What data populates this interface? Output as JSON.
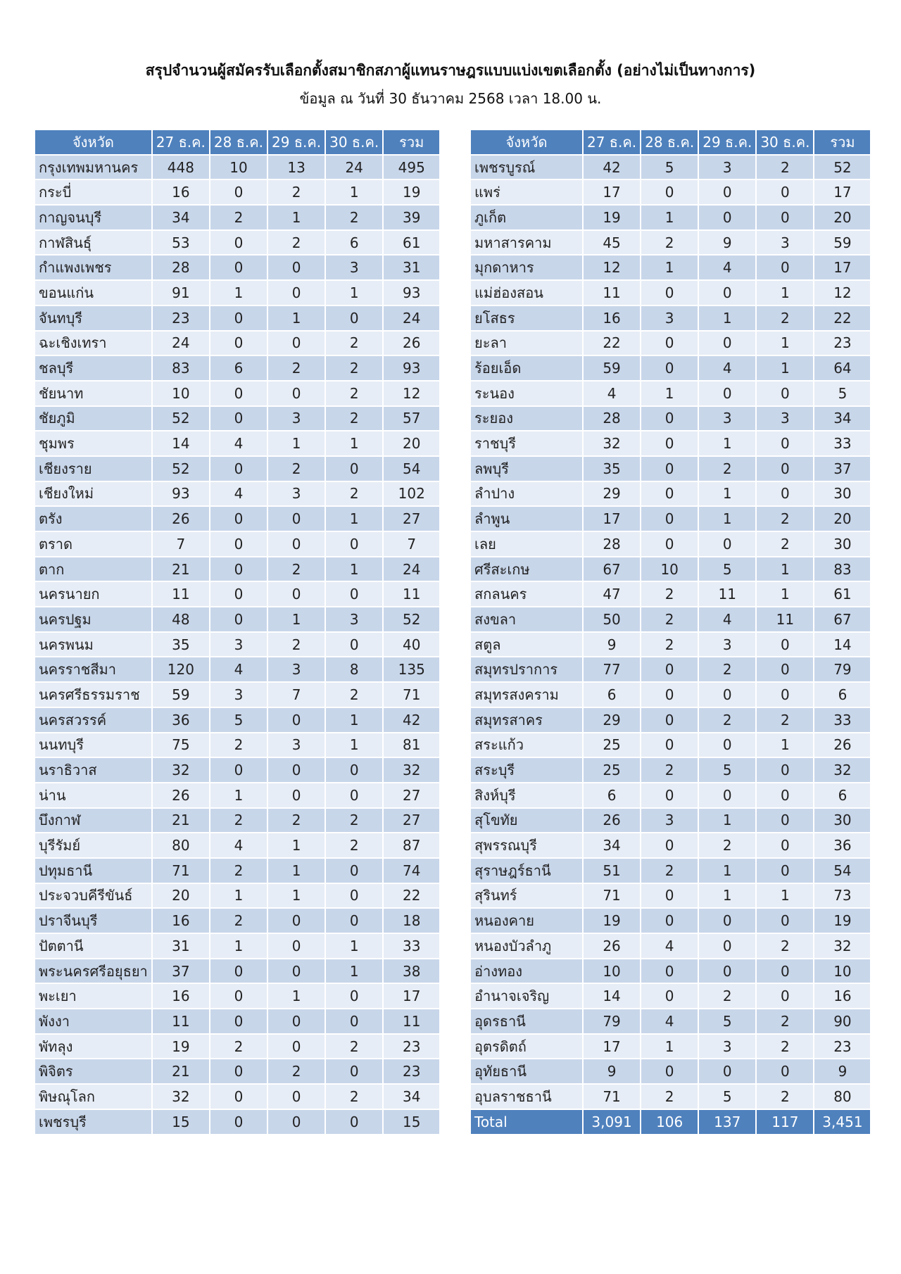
{
  "header": {
    "title": "สรุปจำนวนผู้สมัครรับเลือกตั้งสมาชิกสภาผู้แทนราษฎรแบบแบ่งเขตเลือกตั้ง (อย่างไม่เป็นทางการ)",
    "subtitle": "ข้อมูล ณ วันที่ 30 ธันวาคม 2568 เวลา 18.00 น."
  },
  "tables": [
    {
      "columns": [
        "จังหวัด",
        "27 ธ.ค.",
        "28 ธ.ค.",
        "29 ธ.ค.",
        "30 ธ.ค.",
        "รวม"
      ],
      "rows": [
        [
          "กรุงเทพมหานคร",
          "448",
          "10",
          "13",
          "24",
          "495"
        ],
        [
          "กระบี่",
          "16",
          "0",
          "2",
          "1",
          "19"
        ],
        [
          "กาญจนบุรี",
          "34",
          "2",
          "1",
          "2",
          "39"
        ],
        [
          "กาฬสินธุ์",
          "53",
          "0",
          "2",
          "6",
          "61"
        ],
        [
          "กำแพงเพชร",
          "28",
          "0",
          "0",
          "3",
          "31"
        ],
        [
          "ขอนแก่น",
          "91",
          "1",
          "0",
          "1",
          "93"
        ],
        [
          "จันทบุรี",
          "23",
          "0",
          "1",
          "0",
          "24"
        ],
        [
          "ฉะเชิงเทรา",
          "24",
          "0",
          "0",
          "2",
          "26"
        ],
        [
          "ชลบุรี",
          "83",
          "6",
          "2",
          "2",
          "93"
        ],
        [
          "ชัยนาท",
          "10",
          "0",
          "0",
          "2",
          "12"
        ],
        [
          "ชัยภูมิ",
          "52",
          "0",
          "3",
          "2",
          "57"
        ],
        [
          "ชุมพร",
          "14",
          "4",
          "1",
          "1",
          "20"
        ],
        [
          "เชียงราย",
          "52",
          "0",
          "2",
          "0",
          "54"
        ],
        [
          "เชียงใหม่",
          "93",
          "4",
          "3",
          "2",
          "102"
        ],
        [
          "ตรัง",
          "26",
          "0",
          "0",
          "1",
          "27"
        ],
        [
          "ตราด",
          "7",
          "0",
          "0",
          "0",
          "7"
        ],
        [
          "ตาก",
          "21",
          "0",
          "2",
          "1",
          "24"
        ],
        [
          "นครนายก",
          "11",
          "0",
          "0",
          "0",
          "11"
        ],
        [
          "นครปฐม",
          "48",
          "0",
          "1",
          "3",
          "52"
        ],
        [
          "นครพนม",
          "35",
          "3",
          "2",
          "0",
          "40"
        ],
        [
          "นครราชสีมา",
          "120",
          "4",
          "3",
          "8",
          "135"
        ],
        [
          "นครศรีธรรมราช",
          "59",
          "3",
          "7",
          "2",
          "71"
        ],
        [
          "นครสวรรค์",
          "36",
          "5",
          "0",
          "1",
          "42"
        ],
        [
          "นนทบุรี",
          "75",
          "2",
          "3",
          "1",
          "81"
        ],
        [
          "นราธิวาส",
          "32",
          "0",
          "0",
          "0",
          "32"
        ],
        [
          "น่าน",
          "26",
          "1",
          "0",
          "0",
          "27"
        ],
        [
          "บึงกาฬ",
          "21",
          "2",
          "2",
          "2",
          "27"
        ],
        [
          "บุรีรัมย์",
          "80",
          "4",
          "1",
          "2",
          "87"
        ],
        [
          "ปทุมธานี",
          "71",
          "2",
          "1",
          "0",
          "74"
        ],
        [
          "ประจวบคีรีขันธ์",
          "20",
          "1",
          "1",
          "0",
          "22"
        ],
        [
          "ปราจีนบุรี",
          "16",
          "2",
          "0",
          "0",
          "18"
        ],
        [
          "ปัตตานี",
          "31",
          "1",
          "0",
          "1",
          "33"
        ],
        [
          "พระนครศรีอยุธยา",
          "37",
          "0",
          "0",
          "1",
          "38"
        ],
        [
          "พะเยา",
          "16",
          "0",
          "1",
          "0",
          "17"
        ],
        [
          "พังงา",
          "11",
          "0",
          "0",
          "0",
          "11"
        ],
        [
          "พัทลุง",
          "19",
          "2",
          "0",
          "2",
          "23"
        ],
        [
          "พิจิตร",
          "21",
          "0",
          "2",
          "0",
          "23"
        ],
        [
          "พิษณุโลก",
          "32",
          "0",
          "0",
          "2",
          "34"
        ],
        [
          "เพชรบุรี",
          "15",
          "0",
          "0",
          "0",
          "15"
        ]
      ]
    },
    {
      "columns": [
        "จังหวัด",
        "27 ธ.ค.",
        "28 ธ.ค.",
        "29 ธ.ค.",
        "30 ธ.ค.",
        "รวม"
      ],
      "rows": [
        [
          "เพชรบูรณ์",
          "42",
          "5",
          "3",
          "2",
          "52"
        ],
        [
          "แพร่",
          "17",
          "0",
          "0",
          "0",
          "17"
        ],
        [
          "ภูเก็ต",
          "19",
          "1",
          "0",
          "0",
          "20"
        ],
        [
          "มหาสารคาม",
          "45",
          "2",
          "9",
          "3",
          "59"
        ],
        [
          "มุกดาหาร",
          "12",
          "1",
          "4",
          "0",
          "17"
        ],
        [
          "แม่ฮ่องสอน",
          "11",
          "0",
          "0",
          "1",
          "12"
        ],
        [
          "ยโสธร",
          "16",
          "3",
          "1",
          "2",
          "22"
        ],
        [
          "ยะลา",
          "22",
          "0",
          "0",
          "1",
          "23"
        ],
        [
          "ร้อยเอ็ด",
          "59",
          "0",
          "4",
          "1",
          "64"
        ],
        [
          "ระนอง",
          "4",
          "1",
          "0",
          "0",
          "5"
        ],
        [
          "ระยอง",
          "28",
          "0",
          "3",
          "3",
          "34"
        ],
        [
          "ราชบุรี",
          "32",
          "0",
          "1",
          "0",
          "33"
        ],
        [
          "ลพบุรี",
          "35",
          "0",
          "2",
          "0",
          "37"
        ],
        [
          "ลำปาง",
          "29",
          "0",
          "1",
          "0",
          "30"
        ],
        [
          "ลำพูน",
          "17",
          "0",
          "1",
          "2",
          "20"
        ],
        [
          "เลย",
          "28",
          "0",
          "0",
          "2",
          "30"
        ],
        [
          "ศรีสะเกษ",
          "67",
          "10",
          "5",
          "1",
          "83"
        ],
        [
          "สกลนคร",
          "47",
          "2",
          "11",
          "1",
          "61"
        ],
        [
          "สงขลา",
          "50",
          "2",
          "4",
          "11",
          "67"
        ],
        [
          "สตูล",
          "9",
          "2",
          "3",
          "0",
          "14"
        ],
        [
          "สมุทรปราการ",
          "77",
          "0",
          "2",
          "0",
          "79"
        ],
        [
          "สมุทรสงคราม",
          "6",
          "0",
          "0",
          "0",
          "6"
        ],
        [
          "สมุทรสาคร",
          "29",
          "0",
          "2",
          "2",
          "33"
        ],
        [
          "สระแก้ว",
          "25",
          "0",
          "0",
          "1",
          "26"
        ],
        [
          "สระบุรี",
          "25",
          "2",
          "5",
          "0",
          "32"
        ],
        [
          "สิงห์บุรี",
          "6",
          "0",
          "0",
          "0",
          "6"
        ],
        [
          "สุโขทัย",
          "26",
          "3",
          "1",
          "0",
          "30"
        ],
        [
          "สุพรรณบุรี",
          "34",
          "0",
          "2",
          "0",
          "36"
        ],
        [
          "สุราษฎร์ธานี",
          "51",
          "2",
          "1",
          "0",
          "54"
        ],
        [
          "สุรินทร์",
          "71",
          "0",
          "1",
          "1",
          "73"
        ],
        [
          "หนองคาย",
          "19",
          "0",
          "0",
          "0",
          "19"
        ],
        [
          "หนองบัวลำภู",
          "26",
          "4",
          "0",
          "2",
          "32"
        ],
        [
          "อ่างทอง",
          "10",
          "0",
          "0",
          "0",
          "10"
        ],
        [
          "อำนาจเจริญ",
          "14",
          "0",
          "2",
          "0",
          "16"
        ],
        [
          "อุดรธานี",
          "79",
          "4",
          "5",
          "2",
          "90"
        ],
        [
          "อุตรดิตถ์",
          "17",
          "1",
          "3",
          "2",
          "23"
        ],
        [
          "อุทัยธานี",
          "9",
          "0",
          "0",
          "0",
          "9"
        ],
        [
          "อุบลราชธานี",
          "71",
          "2",
          "5",
          "2",
          "80"
        ]
      ],
      "total": [
        "Total",
        "3,091",
        "106",
        "137",
        "117",
        "3,451"
      ]
    }
  ]
}
